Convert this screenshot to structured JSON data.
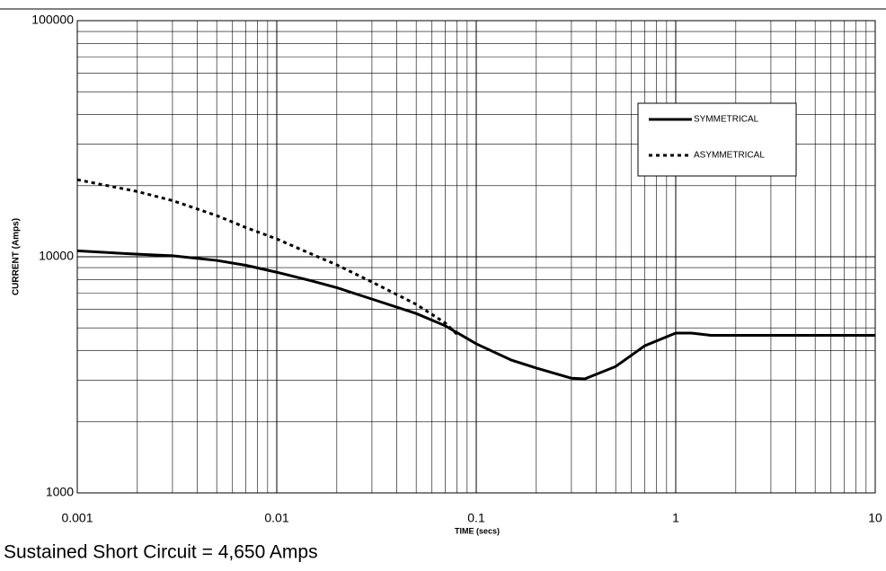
{
  "chart_data": {
    "type": "line",
    "x_label": "TIME (secs)",
    "y_label": "CURRENT (Amps)",
    "caption": "Sustained Short Circuit = 4,650 Amps",
    "xlim": [
      0.001,
      10
    ],
    "ylim": [
      1000,
      100000
    ],
    "xticks": [
      0.001,
      0.01,
      0.1,
      1,
      10
    ],
    "yticks": [
      1000,
      10000,
      100000
    ],
    "xscale": "log",
    "yscale": "log",
    "grid": true,
    "minor_grid": true,
    "legend": "upper right",
    "series": [
      {
        "name": "SYMMETRICAL",
        "color": "#000000",
        "line_style": "solid",
        "x": [
          0.001,
          0.002,
          0.003,
          0.005,
          0.007,
          0.01,
          0.015,
          0.02,
          0.03,
          0.05,
          0.07,
          0.1,
          0.15,
          0.2,
          0.3,
          0.35,
          0.5,
          0.7,
          1,
          1.2,
          1.5,
          2,
          10
        ],
        "values": [
          10600,
          10250,
          10100,
          9650,
          9200,
          8600,
          7900,
          7400,
          6620,
          5750,
          5100,
          4280,
          3650,
          3380,
          3060,
          3040,
          3430,
          4200,
          4750,
          4750,
          4650,
          4650,
          4650
        ]
      },
      {
        "name": "ASYMMETRICAL",
        "color": "#000000",
        "line_style": "dotted",
        "x": [
          0.001,
          0.002,
          0.003,
          0.005,
          0.007,
          0.01,
          0.015,
          0.02,
          0.03,
          0.05,
          0.07,
          0.08
        ],
        "values": [
          21200,
          18900,
          17300,
          14940,
          13300,
          11900,
          10250,
          9240,
          7820,
          6290,
          5240,
          4700
        ]
      }
    ]
  }
}
